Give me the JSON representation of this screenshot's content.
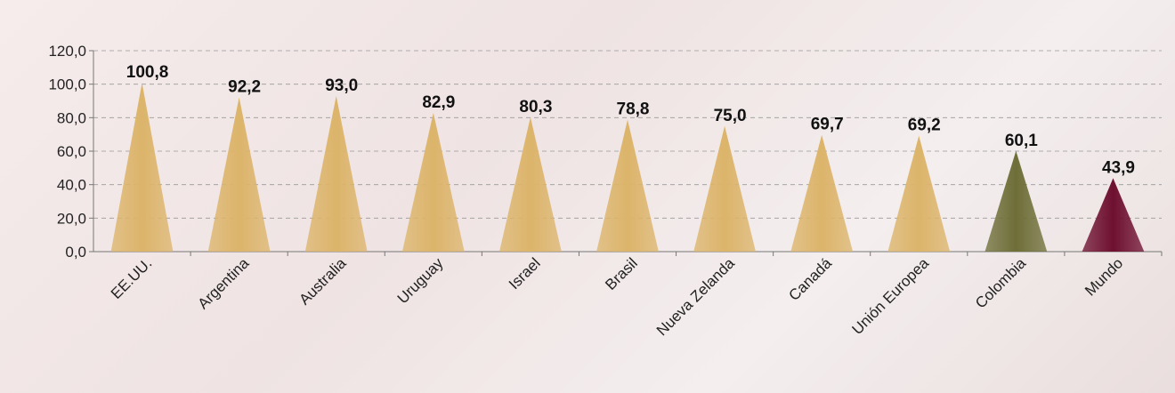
{
  "chart_data": {
    "type": "bar",
    "categories": [
      "EE.UU.",
      "Argentina",
      "Australia",
      "Uruguay",
      "Israel",
      "Brasil",
      "Nueva Zelanda",
      "Canadá",
      "Unión Europea",
      "Colombia",
      "Mundo"
    ],
    "values": [
      100.8,
      92.2,
      93.0,
      82.9,
      80.3,
      78.8,
      75.0,
      69.7,
      69.2,
      60.1,
      43.9
    ],
    "value_labels": [
      "100,8",
      "92,2",
      "93,0",
      "82,9",
      "80,3",
      "78,8",
      "75,0",
      "69,7",
      "69,2",
      "60,1",
      "43,9"
    ],
    "colors": [
      "#dcb46a",
      "#dcb46a",
      "#dcb46a",
      "#dcb46a",
      "#dcb46a",
      "#dcb46a",
      "#dcb46a",
      "#dcb46a",
      "#dcb46a",
      "#6e6e38",
      "#6e1030"
    ],
    "ylim": [
      0,
      120
    ],
    "yticks": [
      {
        "value": 0,
        "label": "0,0"
      },
      {
        "value": 20,
        "label": "20,0"
      },
      {
        "value": 40,
        "label": "40,0"
      },
      {
        "value": 60,
        "label": "60,0"
      },
      {
        "value": 80,
        "label": "80,0"
      },
      {
        "value": 100,
        "label": "100,0"
      },
      {
        "value": 120,
        "label": "120,0"
      }
    ],
    "grid": true
  }
}
